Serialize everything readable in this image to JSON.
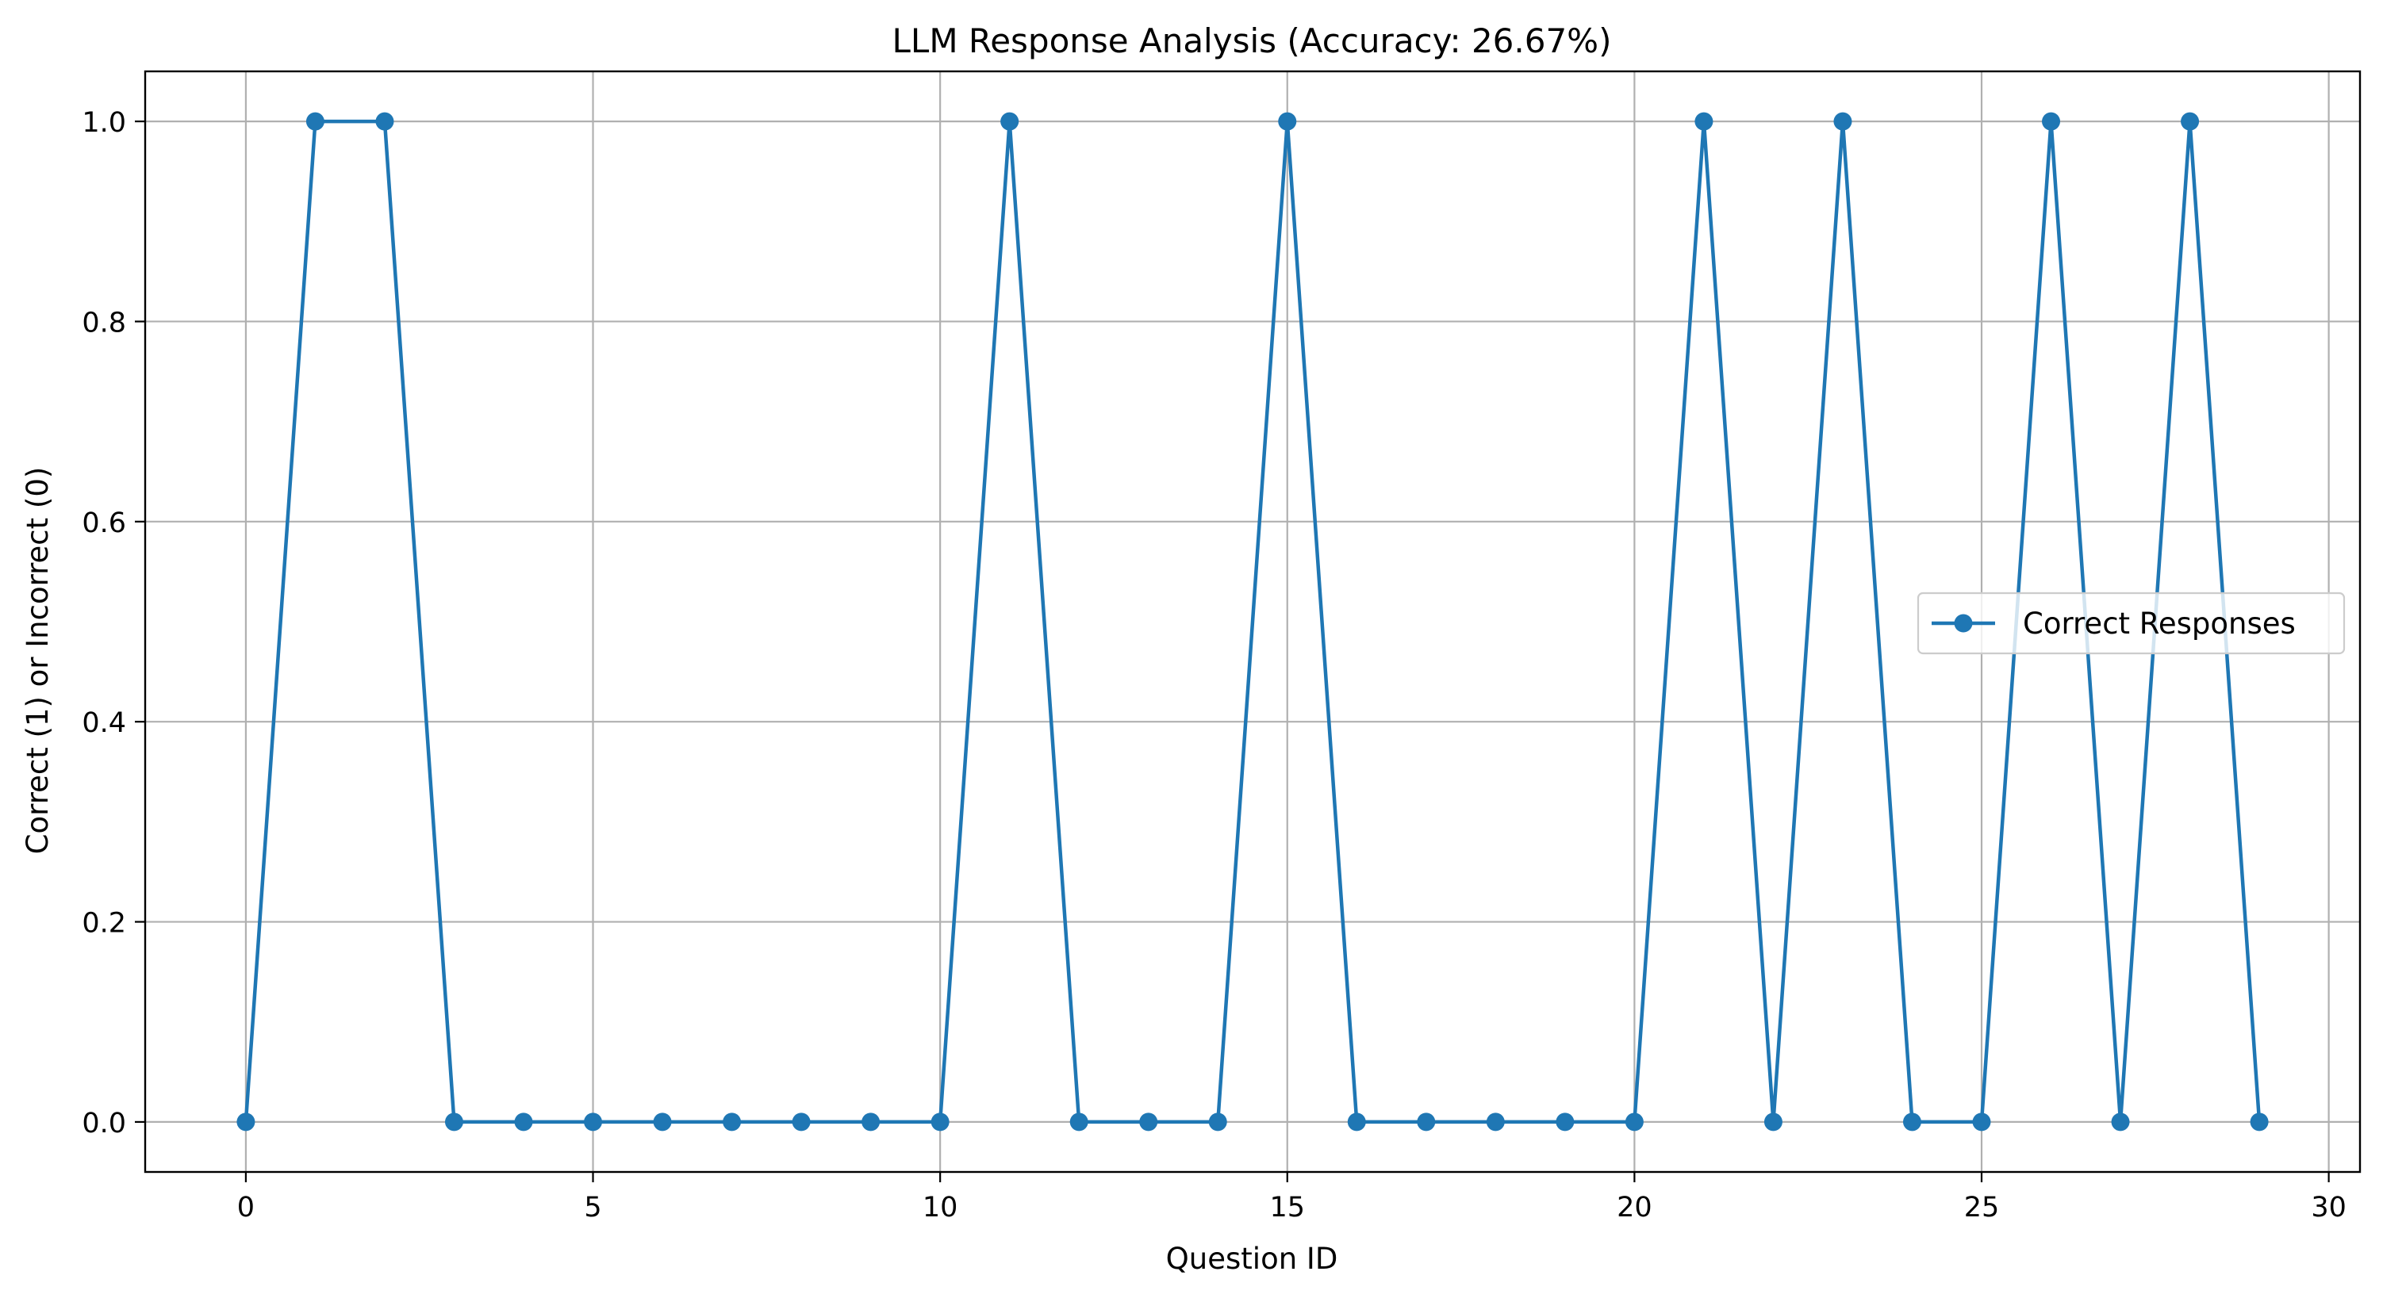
{
  "chart_data": {
    "type": "line",
    "title": "LLM Response Analysis (Accuracy: 26.67%)",
    "xlabel": "Question ID",
    "ylabel": "Correct (1) or Incorrect (0)",
    "xlim": [
      -1.45,
      30.45
    ],
    "ylim": [
      -0.05,
      1.05
    ],
    "x_ticks": [
      0,
      5,
      10,
      15,
      20,
      25,
      30
    ],
    "x_tick_labels": [
      "0",
      "5",
      "10",
      "15",
      "20",
      "25",
      "30"
    ],
    "y_ticks": [
      0.0,
      0.2,
      0.4,
      0.6,
      0.8,
      1.0
    ],
    "y_tick_labels": [
      "0.0",
      "0.2",
      "0.4",
      "0.6",
      "0.8",
      "1.0"
    ],
    "grid": true,
    "legend_position": "center-right",
    "series": [
      {
        "name": "Correct Responses",
        "color": "#1f77b4",
        "marker": "circle",
        "x": [
          0,
          1,
          2,
          3,
          4,
          5,
          6,
          7,
          8,
          9,
          10,
          11,
          12,
          13,
          14,
          15,
          16,
          17,
          18,
          19,
          20,
          21,
          22,
          23,
          24,
          25,
          26,
          27,
          28,
          29
        ],
        "values": [
          0,
          1,
          1,
          0,
          0,
          0,
          0,
          0,
          0,
          0,
          0,
          1,
          0,
          0,
          0,
          1,
          0,
          0,
          0,
          0,
          0,
          1,
          0,
          1,
          0,
          0,
          1,
          0,
          1,
          0
        ]
      }
    ]
  }
}
